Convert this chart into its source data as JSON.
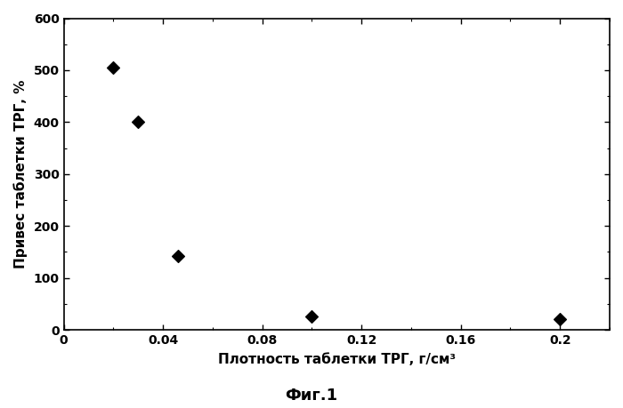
{
  "x": [
    0.02,
    0.03,
    0.046,
    0.1,
    0.2
  ],
  "y": [
    505,
    400,
    142,
    25,
    20
  ],
  "marker": "D",
  "marker_color": "#000000",
  "marker_size": 7,
  "xlabel": "Плотность таблетки ТРГ, г/см³",
  "ylabel": "Привес таблетки ТРГ, %",
  "caption": "Фиг.1",
  "xlim": [
    0,
    0.22
  ],
  "ylim": [
    0,
    600
  ],
  "xticks": [
    0,
    0.04,
    0.08,
    0.12,
    0.16,
    0.2
  ],
  "yticks": [
    0,
    100,
    200,
    300,
    400,
    500,
    600
  ],
  "background_color": "#ffffff",
  "axes_color": "#000000",
  "tick_fontsize": 10,
  "label_fontsize": 11,
  "caption_fontsize": 13
}
